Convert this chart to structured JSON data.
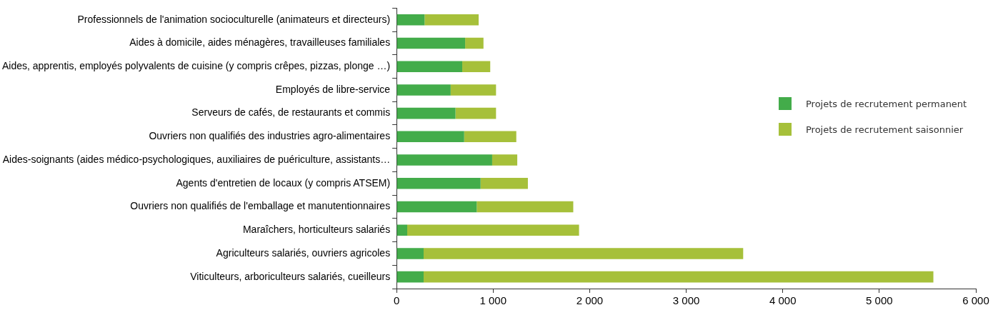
{
  "chart_data": {
    "type": "bar",
    "orientation": "horizontal",
    "stacked": true,
    "categories": [
      "Professionnels de l'animation socioculturelle (animateurs et directeurs)",
      "Aides à domicile, aides ménagères, travailleuses familiales",
      "Aides, apprentis, employés polyvalents de cuisine (y compris crêpes, pizzas, plonge …)",
      "Employés de libre-service",
      "Serveurs de cafés, de restaurants et commis",
      "Ouvriers non qualifiés des industries agro-alimentaires",
      "Aides-soignants (aides médico-psychologiques, auxiliaires de puériculture, assistants…",
      "Agents d'entretien de locaux (y compris ATSEM)",
      "Ouvriers non qualifiés de l'emballage et manutentionnaires",
      "Maraîchers, horticulteurs salariés",
      "Agriculteurs salariés, ouvriers agricoles",
      "Viticulteurs, arboriculteurs salariés, cueilleurs"
    ],
    "series": [
      {
        "name": "Projets de recrutement permanent",
        "color": "#43ac4a",
        "values": [
          290,
          710,
          680,
          560,
          610,
          700,
          990,
          870,
          830,
          110,
          280,
          280
        ]
      },
      {
        "name": "Projets de recrutement saisonnier",
        "color": "#a6c03a",
        "values": [
          560,
          190,
          290,
          470,
          420,
          540,
          260,
          490,
          1000,
          1780,
          3310,
          5280
        ]
      }
    ],
    "xlim": [
      0,
      6000
    ],
    "xticks": [
      0,
      {
        "value": 1000,
        "label": "1 000"
      },
      {
        "value": 2000,
        "label": "2 000"
      },
      {
        "value": 3000,
        "label": "3 000"
      },
      {
        "value": 4000,
        "label": "4 000"
      },
      {
        "value": 5000,
        "label": "5 000"
      },
      {
        "value": 6000,
        "label": "6 000"
      }
    ],
    "grid": false,
    "legend": "right"
  }
}
